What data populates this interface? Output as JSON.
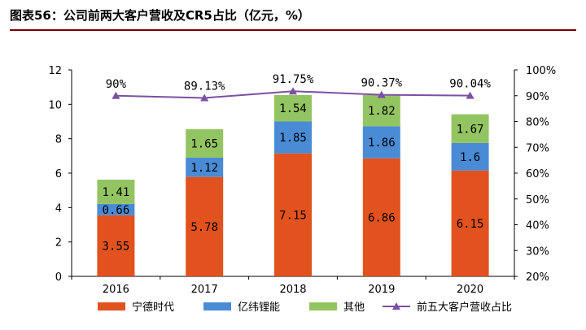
{
  "figure_title": "图表56：公司前两大客户营收及CR5占比（亿元，%）",
  "colors": {
    "catl": "#e2521f",
    "eve": "#4a8bd6",
    "other": "#93c462",
    "cr5": "#7b4fa3",
    "title_rule": "#7a0000"
  },
  "chart_data": {
    "type": "bar",
    "stacked": true,
    "categories": [
      "2016",
      "2017",
      "2018",
      "2019",
      "2020"
    ],
    "series": [
      {
        "name": "宁德时代",
        "values": [
          3.55,
          5.78,
          7.15,
          6.86,
          6.15
        ],
        "labels": [
          "3.55",
          "5.78",
          "7.15",
          "6.86",
          "6.15"
        ],
        "color": "#e2521f"
      },
      {
        "name": "亿纬锂能",
        "values": [
          0.66,
          1.12,
          1.85,
          1.86,
          1.6
        ],
        "labels": [
          "0.66",
          "1.12",
          "1.85",
          "1.86",
          "1.6"
        ],
        "color": "#4a8bd6"
      },
      {
        "name": "其他",
        "values": [
          1.41,
          1.65,
          1.54,
          1.82,
          1.67
        ],
        "labels": [
          "1.41",
          "1.65",
          "1.54",
          "1.82",
          "1.67"
        ],
        "color": "#93c462"
      }
    ],
    "line_series": {
      "name": "前五大客户营收占比",
      "values": [
        90,
        89.13,
        91.75,
        90.37,
        90.04
      ],
      "labels": [
        "90%",
        "89.13%",
        "91.75%",
        "90.37%",
        "90.04%"
      ],
      "axis": "right",
      "color": "#7b4fa3"
    },
    "ylim": [
      0,
      12
    ],
    "yticks": [
      "0",
      "2",
      "4",
      "6",
      "8",
      "10",
      "12"
    ],
    "y2lim": [
      20,
      100
    ],
    "y2ticks": [
      "20%",
      "30%",
      "40%",
      "50%",
      "60%",
      "70%",
      "80%",
      "90%",
      "100%"
    ],
    "grid": false,
    "legend_position": "bottom"
  }
}
